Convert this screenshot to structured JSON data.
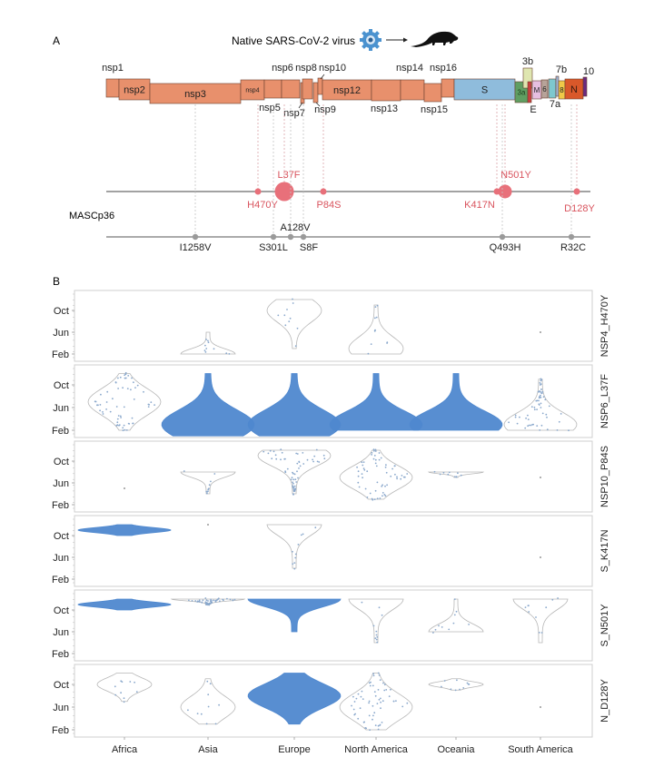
{
  "panelA": {
    "label": "A",
    "header": "Native SARS-CoV-2 virus",
    "icons": [
      "virus-icon",
      "arrow-right-icon",
      "mouse-icon"
    ],
    "genes": [
      {
        "name": "nsp1",
        "label": "nsp1",
        "labelPos": "above",
        "color": "#e8906c"
      },
      {
        "name": "nsp2",
        "label": "nsp2",
        "labelPos": "inside",
        "color": "#e8906c"
      },
      {
        "name": "nsp3",
        "label": "nsp3",
        "labelPos": "inside",
        "color": "#e8906c"
      },
      {
        "name": "nsp4",
        "label": "nsp4",
        "labelPos": "inside-small",
        "color": "#e8906c"
      },
      {
        "name": "nsp5",
        "label": "nsp5",
        "labelPos": "below",
        "color": "#e8906c"
      },
      {
        "name": "nsp6",
        "label": "nsp6",
        "labelPos": "above",
        "color": "#e8906c"
      },
      {
        "name": "nsp7",
        "label": "nsp7",
        "labelPos": "below",
        "color": "#e8906c"
      },
      {
        "name": "nsp8",
        "label": "nsp8",
        "labelPos": "above",
        "color": "#e8906c"
      },
      {
        "name": "nsp9",
        "label": "nsp9",
        "labelPos": "below",
        "color": "#e8906c"
      },
      {
        "name": "nsp10",
        "label": "nsp10",
        "labelPos": "above",
        "color": "#e8906c"
      },
      {
        "name": "nsp12",
        "label": "nsp12",
        "labelPos": "inside",
        "color": "#e8906c"
      },
      {
        "name": "nsp13",
        "label": "nsp13",
        "labelPos": "below",
        "color": "#e8906c"
      },
      {
        "name": "nsp14",
        "label": "nsp14",
        "labelPos": "above",
        "color": "#e8906c"
      },
      {
        "name": "nsp15",
        "label": "nsp15",
        "labelPos": "below",
        "color": "#e8906c"
      },
      {
        "name": "nsp16",
        "label": "nsp16",
        "labelPos": "above",
        "color": "#e8906c"
      },
      {
        "name": "S",
        "label": "S",
        "labelPos": "inside",
        "color": "#8fbcdc"
      },
      {
        "name": "3a",
        "label": "3a",
        "labelPos": "inside",
        "color": "#5f9e62"
      },
      {
        "name": "3b",
        "label": "3b",
        "labelPos": "above",
        "color": "#dfe6b0"
      },
      {
        "name": "E",
        "label": "E",
        "labelPos": "below",
        "color": "#c94040"
      },
      {
        "name": "M",
        "label": "M",
        "labelPos": "inside",
        "color": "#e6bfe0"
      },
      {
        "name": "6",
        "label": "6",
        "labelPos": "inside",
        "color": "#b7a399"
      },
      {
        "name": "7a",
        "label": "7a",
        "labelPos": "below",
        "color": "#7ec8cf"
      },
      {
        "name": "7b",
        "label": "7b",
        "labelPos": "above",
        "color": "#9fb6d6"
      },
      {
        "name": "8",
        "label": "8",
        "labelPos": "inside",
        "color": "#f0c948"
      },
      {
        "name": "N",
        "label": "N",
        "labelPos": "inside",
        "color": "#d9582a"
      },
      {
        "name": "10",
        "label": "10",
        "labelPos": "above",
        "color": "#6a2a80"
      }
    ],
    "strain_label": "MASCp36",
    "line1_mutations": [
      {
        "label": "H470Y",
        "gene": "nsp4",
        "size": "small",
        "labelPos": "below"
      },
      {
        "label": "L37F",
        "gene": "nsp6",
        "size": "large",
        "labelPos": "above"
      },
      {
        "label": "P84S",
        "gene": "nsp10",
        "size": "small",
        "labelPos": "below"
      },
      {
        "label": "K417N",
        "gene": "S",
        "size": "small",
        "labelPos": "below"
      },
      {
        "label": "N501Y",
        "gene": "S",
        "size": "medium",
        "labelPos": "above"
      },
      {
        "label": "D128Y",
        "gene": "N",
        "size": "small",
        "labelPos": "below"
      }
    ],
    "line2_mutations": [
      {
        "label": "I1258V",
        "gene": "nsp3",
        "labelPos": "below"
      },
      {
        "label": "S301L",
        "gene": "nsp5",
        "labelPos": "below"
      },
      {
        "label": "A128V",
        "gene": "nsp7",
        "labelPos": "above"
      },
      {
        "label": "S8F",
        "gene": "nsp8",
        "labelPos": "below"
      },
      {
        "label": "Q493H",
        "gene": "S",
        "labelPos": "below"
      },
      {
        "label": "R32C",
        "gene": "N",
        "labelPos": "below"
      }
    ],
    "colors": {
      "mutation_highlight": "#e8707a",
      "mutation_text": "#d9545e",
      "mutation_neutral": "#9a9a9a"
    }
  },
  "panelB": {
    "label": "B",
    "chart_data": {
      "type": "scatter",
      "subtype": "faceted violin / beeswarm",
      "categories": [
        "Africa",
        "Asia",
        "Europe",
        "North America",
        "Oceania",
        "South America"
      ],
      "y_ticks": [
        "Feb",
        "Jun",
        "Oct"
      ],
      "ylabel": "",
      "xlabel": "",
      "grid": false,
      "facet_labels_position": "right",
      "colors": {
        "dense": "#4f88cf",
        "sparse_outline": "#b7b7b7",
        "point": "#8aa8cc"
      },
      "facets": [
        {
          "name": "NSP4_H470Y",
          "violins": [
            {
              "category": "Africa",
              "present": false
            },
            {
              "category": "Asia",
              "present": true,
              "density": "low",
              "range": [
                "Feb",
                "Jun"
              ],
              "mode": "Feb"
            },
            {
              "category": "Europe",
              "present": true,
              "density": "low",
              "range": [
                "Mar",
                "Dec"
              ],
              "mode": "Oct"
            },
            {
              "category": "North America",
              "present": true,
              "density": "low",
              "range": [
                "Feb",
                "Nov"
              ],
              "mode": "Mar"
            },
            {
              "category": "Oceania",
              "present": false
            },
            {
              "category": "South America",
              "present": true,
              "density": "single",
              "range": [
                "Jun",
                "Jun"
              ],
              "mode": "Jun"
            }
          ]
        },
        {
          "name": "NSP6_L37F",
          "violins": [
            {
              "category": "Africa",
              "present": true,
              "density": "medium",
              "range": [
                "Feb",
                "Dec"
              ],
              "mode": "Jul"
            },
            {
              "category": "Asia",
              "present": true,
              "density": "high",
              "range": [
                "Jan",
                "Dec"
              ],
              "mode": "Mar"
            },
            {
              "category": "Europe",
              "present": true,
              "density": "high",
              "range": [
                "Jan",
                "Dec"
              ],
              "mode": "Mar"
            },
            {
              "category": "North America",
              "present": true,
              "density": "high",
              "range": [
                "Feb",
                "Dec"
              ],
              "mode": "Mar"
            },
            {
              "category": "Oceania",
              "present": true,
              "density": "high",
              "range": [
                "Feb",
                "Dec"
              ],
              "mode": "Mar"
            },
            {
              "category": "South America",
              "present": true,
              "density": "medium",
              "range": [
                "Feb",
                "Nov"
              ],
              "mode": "Mar"
            }
          ]
        },
        {
          "name": "NSP10_P84S",
          "violins": [
            {
              "category": "Africa",
              "present": true,
              "density": "single",
              "range": [
                "May",
                "May"
              ],
              "mode": "May"
            },
            {
              "category": "Asia",
              "present": true,
              "density": "low",
              "range": [
                "Apr",
                "Aug"
              ],
              "mode": "Aug"
            },
            {
              "category": "Europe",
              "present": true,
              "density": "medium",
              "range": [
                "Apr",
                "Dec"
              ],
              "mode": "Nov"
            },
            {
              "category": "North America",
              "present": true,
              "density": "medium",
              "range": [
                "Mar",
                "Dec"
              ],
              "mode": "Jul"
            },
            {
              "category": "Oceania",
              "present": true,
              "density": "low",
              "range": [
                "Jul",
                "Aug"
              ],
              "mode": "Aug"
            },
            {
              "category": "South America",
              "present": true,
              "density": "single",
              "range": [
                "Jun",
                "Jul"
              ],
              "mode": "Jul"
            }
          ]
        },
        {
          "name": "S_K417N",
          "violins": [
            {
              "category": "Africa",
              "present": true,
              "density": "high",
              "range": [
                "Oct",
                "Dec"
              ],
              "mode": "Nov"
            },
            {
              "category": "Asia",
              "present": true,
              "density": "single",
              "range": [
                "Dec",
                "Dec"
              ],
              "mode": "Dec"
            },
            {
              "category": "Europe",
              "present": true,
              "density": "low",
              "range": [
                "Apr",
                "Dec"
              ],
              "mode": "Dec"
            },
            {
              "category": "North America",
              "present": false
            },
            {
              "category": "Oceania",
              "present": false
            },
            {
              "category": "South America",
              "present": true,
              "density": "single",
              "range": [
                "Jun",
                "Jun"
              ],
              "mode": "Jun"
            }
          ]
        },
        {
          "name": "S_N501Y",
          "violins": [
            {
              "category": "Africa",
              "present": true,
              "density": "high",
              "range": [
                "Oct",
                "Dec"
              ],
              "mode": "Nov"
            },
            {
              "category": "Asia",
              "present": true,
              "density": "medium",
              "range": [
                "Nov",
                "Dec"
              ],
              "mode": "Dec"
            },
            {
              "category": "Europe",
              "present": true,
              "density": "high",
              "range": [
                "Jun",
                "Dec"
              ],
              "mode": "Dec"
            },
            {
              "category": "North America",
              "present": true,
              "density": "low",
              "range": [
                "Apr",
                "Dec"
              ],
              "mode": "Dec"
            },
            {
              "category": "Oceania",
              "present": true,
              "density": "low",
              "range": [
                "Jun",
                "Dec"
              ],
              "mode": "Jun"
            },
            {
              "category": "South America",
              "present": true,
              "density": "low",
              "range": [
                "Apr",
                "Dec"
              ],
              "mode": "Dec"
            }
          ]
        },
        {
          "name": "N_D128Y",
          "violins": [
            {
              "category": "Africa",
              "present": true,
              "density": "low",
              "range": [
                "Jul",
                "Dec"
              ],
              "mode": "Oct"
            },
            {
              "category": "Asia",
              "present": true,
              "density": "low",
              "range": [
                "Mar",
                "Nov"
              ],
              "mode": "Jun"
            },
            {
              "category": "Europe",
              "present": true,
              "density": "high",
              "range": [
                "Mar",
                "Dec"
              ],
              "mode": "Aug"
            },
            {
              "category": "North America",
              "present": true,
              "density": "medium",
              "range": [
                "Feb",
                "Dec"
              ],
              "mode": "Jun"
            },
            {
              "category": "Oceania",
              "present": true,
              "density": "low",
              "range": [
                "Sep",
                "Nov"
              ],
              "mode": "Oct"
            },
            {
              "category": "South America",
              "present": true,
              "density": "single",
              "range": [
                "Jun",
                "Jun"
              ],
              "mode": "Jun"
            }
          ]
        }
      ]
    }
  }
}
